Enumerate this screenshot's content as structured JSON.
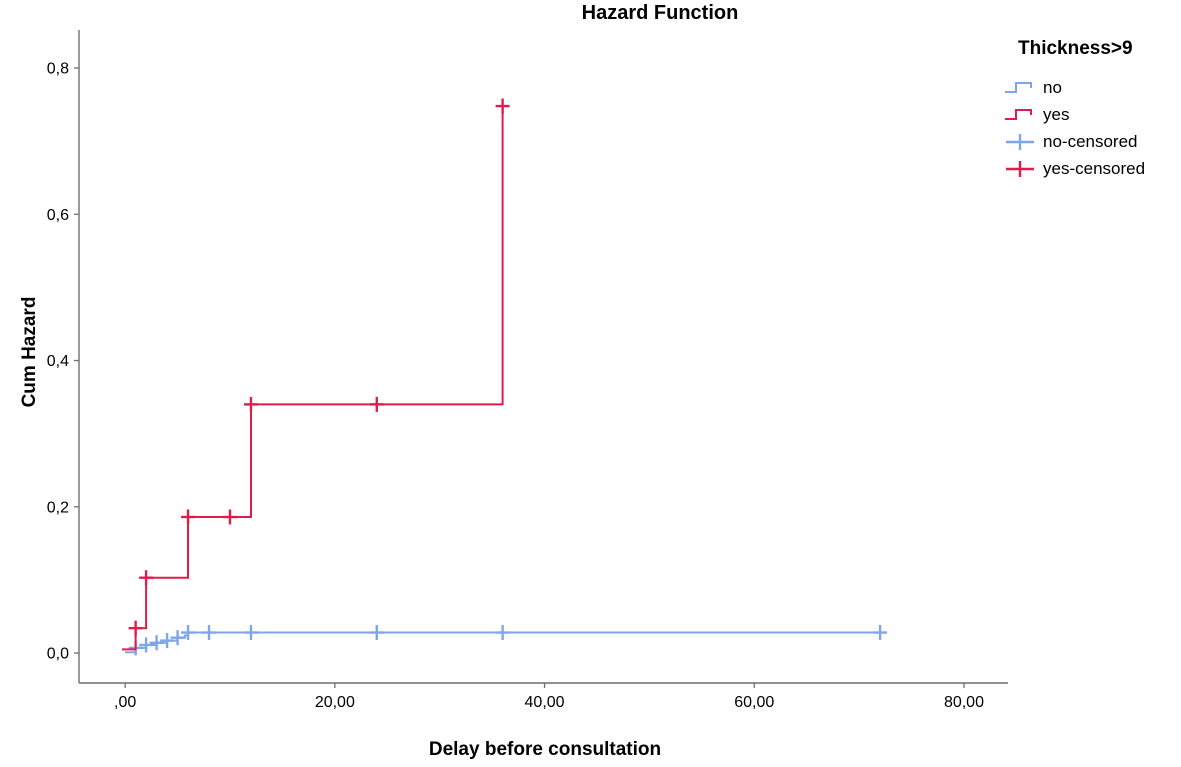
{
  "chart_data": {
    "type": "line",
    "subtype": "step-survival-hazard",
    "title": "Hazard Function",
    "xlabel": "Delay before consultation",
    "ylabel": "Cum Hazard",
    "grid": false,
    "legend_position": "right",
    "xlim": [
      -4.4,
      84.2
    ],
    "ylim": [
      -0.041,
      0.852
    ],
    "x_ticks": [
      {
        "v": 0,
        "label": ",00"
      },
      {
        "v": 20,
        "label": "20,00"
      },
      {
        "v": 40,
        "label": "40,00"
      },
      {
        "v": 60,
        "label": "60,00"
      },
      {
        "v": 80,
        "label": "80,00"
      }
    ],
    "y_ticks": [
      {
        "v": 0.0,
        "label": "0,0"
      },
      {
        "v": 0.2,
        "label": "0,2"
      },
      {
        "v": 0.4,
        "label": "0,4"
      },
      {
        "v": 0.6,
        "label": "0,6"
      },
      {
        "v": 0.8,
        "label": "0,8"
      }
    ],
    "axis_color": "#6f6f6f",
    "text_color": "#000000",
    "series": [
      {
        "name": "no",
        "color": "#7FA5EA",
        "step_points": [
          [
            0,
            0.001
          ],
          [
            1,
            0.001
          ],
          [
            1,
            0.007
          ],
          [
            2,
            0.007
          ],
          [
            2,
            0.011
          ],
          [
            3,
            0.011
          ],
          [
            3,
            0.014
          ],
          [
            4,
            0.014
          ],
          [
            4,
            0.017
          ],
          [
            5,
            0.017
          ],
          [
            5,
            0.021
          ],
          [
            5.7,
            0.021
          ],
          [
            5.7,
            0.024
          ],
          [
            6,
            0.024
          ],
          [
            6,
            0.028
          ],
          [
            72,
            0.028
          ]
        ],
        "censored": [
          [
            1,
            0.007
          ],
          [
            2,
            0.011
          ],
          [
            3,
            0.014
          ],
          [
            4,
            0.017
          ],
          [
            5,
            0.021
          ],
          [
            6,
            0.028
          ],
          [
            8,
            0.028
          ],
          [
            12,
            0.028
          ],
          [
            24,
            0.028
          ],
          [
            36,
            0.028
          ],
          [
            72,
            0.028
          ]
        ]
      },
      {
        "name": "yes",
        "color": "#E31B4C",
        "step_points": [
          [
            -0.3,
            0.005
          ],
          [
            1,
            0.005
          ],
          [
            1,
            0.034
          ],
          [
            2,
            0.034
          ],
          [
            2,
            0.103
          ],
          [
            6,
            0.103
          ],
          [
            6,
            0.186
          ],
          [
            12,
            0.186
          ],
          [
            12,
            0.34
          ],
          [
            36,
            0.34
          ],
          [
            36,
            0.748
          ]
        ],
        "censored": [
          [
            1,
            0.034
          ],
          [
            2,
            0.103
          ],
          [
            6,
            0.186
          ],
          [
            10,
            0.186
          ],
          [
            12,
            0.34
          ],
          [
            24,
            0.34
          ],
          [
            36,
            0.748
          ]
        ]
      }
    ]
  },
  "legend": {
    "title": "Thickness>9",
    "items": [
      {
        "label": "no",
        "type": "line",
        "color": "#7FA5EA"
      },
      {
        "label": "yes",
        "type": "line",
        "color": "#E31B4C"
      },
      {
        "label": "no-censored",
        "type": "plus",
        "color": "#7FA5EA"
      },
      {
        "label": "yes-censored",
        "type": "plus",
        "color": "#E31B4C"
      }
    ]
  }
}
